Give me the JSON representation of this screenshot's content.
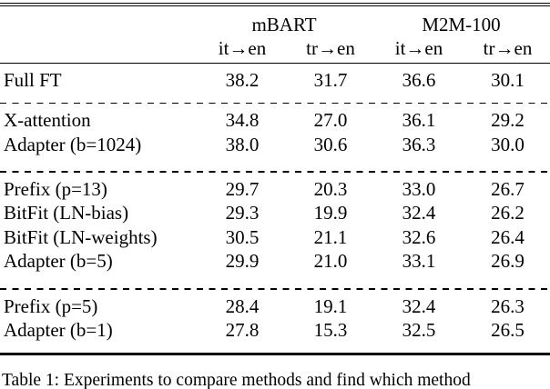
{
  "table": {
    "group_headers": [
      {
        "label": "mBART"
      },
      {
        "label": "M2M-100"
      }
    ],
    "sub_headers": [
      "it→en",
      "tr→en",
      "it→en",
      "tr→en"
    ],
    "groups": [
      {
        "rows": [
          {
            "label": "Full FT",
            "values": [
              "38.2",
              "31.7",
              "36.6",
              "30.1"
            ]
          }
        ]
      },
      {
        "rows": [
          {
            "label": "X-attention",
            "values": [
              "34.8",
              "27.0",
              "36.1",
              "29.2"
            ]
          },
          {
            "label": "Adapter (b=1024)",
            "values": [
              "38.0",
              "30.6",
              "36.3",
              "30.0"
            ]
          }
        ]
      },
      {
        "rows": [
          {
            "label": "Prefix (p=13)",
            "values": [
              "29.7",
              "20.3",
              "33.0",
              "26.7"
            ]
          },
          {
            "label": "BitFit (LN-bias)",
            "values": [
              "29.3",
              "19.9",
              "32.4",
              "26.2"
            ]
          },
          {
            "label": "BitFit (LN-weights)",
            "values": [
              "30.5",
              "21.1",
              "32.6",
              "26.4"
            ]
          },
          {
            "label": "Adapter (b=5)",
            "values": [
              "29.9",
              "21.0",
              "33.1",
              "26.9"
            ]
          }
        ]
      },
      {
        "rows": [
          {
            "label": "Prefix (p=5)",
            "values": [
              "28.4",
              "19.1",
              "32.4",
              "26.3"
            ]
          },
          {
            "label": "Adapter (b=1)",
            "values": [
              "27.8",
              "15.3",
              "32.5",
              "26.5"
            ]
          }
        ]
      }
    ]
  },
  "caption": {
    "text": "Table 1: Experiments to compare methods and find which method"
  }
}
